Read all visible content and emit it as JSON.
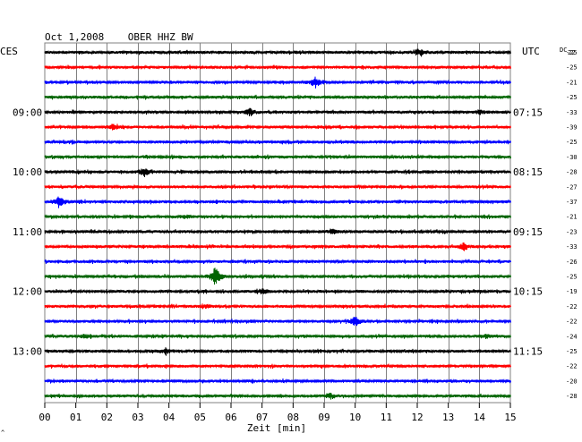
{
  "chart_data": {
    "type": "line",
    "title": "Oct 1,2008    OBER HHZ BW",
    "left_axis_label": "CES",
    "right_axis_label": "UTC",
    "dc_label": "DC",
    "dc_label_sub": "22",
    "xlabel": "Zeit [min]",
    "x_ticks": [
      "00",
      "01",
      "02",
      "03",
      "04",
      "05",
      "06",
      "07",
      "08",
      "09",
      "10",
      "11",
      "12",
      "13",
      "14",
      "15"
    ],
    "xlim": [
      0,
      15
    ],
    "grid": true,
    "left_hour_labels": [
      {
        "row": 4,
        "text": "09:00"
      },
      {
        "row": 8,
        "text": "10:00"
      },
      {
        "row": 12,
        "text": "11:00"
      },
      {
        "row": 16,
        "text": "12:00"
      },
      {
        "row": 20,
        "text": "13:00"
      }
    ],
    "right_time_labels": [
      {
        "row": 4,
        "text": "07:15"
      },
      {
        "row": 8,
        "text": "08:15"
      },
      {
        "row": 12,
        "text": "09:15"
      },
      {
        "row": 16,
        "text": "10:15"
      },
      {
        "row": 20,
        "text": "11:15"
      }
    ],
    "traces": [
      {
        "color": "#000000",
        "dc": "-25",
        "events": [
          {
            "t": 12.1,
            "amp": 4
          }
        ]
      },
      {
        "color": "#ff0000",
        "dc": "-25",
        "events": []
      },
      {
        "color": "#0000ff",
        "dc": "-21",
        "events": [
          {
            "t": 8.7,
            "amp": 6
          }
        ]
      },
      {
        "color": "#006400",
        "dc": "-25",
        "events": []
      },
      {
        "color": "#000000",
        "dc": "-33",
        "events": [
          {
            "t": 6.6,
            "amp": 4
          },
          {
            "t": 14.0,
            "amp": 2
          }
        ]
      },
      {
        "color": "#ff0000",
        "dc": "-39",
        "events": [
          {
            "t": 2.2,
            "amp": 3
          }
        ]
      },
      {
        "color": "#0000ff",
        "dc": "-25",
        "events": []
      },
      {
        "color": "#006400",
        "dc": "-30",
        "events": []
      },
      {
        "color": "#000000",
        "dc": "-28",
        "events": [
          {
            "t": 3.2,
            "amp": 5
          }
        ]
      },
      {
        "color": "#ff0000",
        "dc": "-27",
        "events": []
      },
      {
        "color": "#0000ff",
        "dc": "-37",
        "events": [
          {
            "t": 0.45,
            "amp": 7
          }
        ]
      },
      {
        "color": "#006400",
        "dc": "-21",
        "events": [
          {
            "t": 4.5,
            "amp": 2
          }
        ]
      },
      {
        "color": "#000000",
        "dc": "-23",
        "events": [
          {
            "t": 9.3,
            "amp": 2
          }
        ]
      },
      {
        "color": "#ff0000",
        "dc": "-33",
        "events": [
          {
            "t": 13.5,
            "amp": 4
          }
        ]
      },
      {
        "color": "#0000ff",
        "dc": "-26",
        "events": []
      },
      {
        "color": "#006400",
        "dc": "-25",
        "events": [
          {
            "t": 5.5,
            "amp": 10
          }
        ]
      },
      {
        "color": "#000000",
        "dc": "-19",
        "events": [
          {
            "t": 7.0,
            "amp": 3
          }
        ]
      },
      {
        "color": "#ff0000",
        "dc": "-22",
        "events": [
          {
            "t": 5.2,
            "amp": 2
          }
        ]
      },
      {
        "color": "#0000ff",
        "dc": "-22",
        "events": [
          {
            "t": 10.0,
            "amp": 5
          }
        ]
      },
      {
        "color": "#006400",
        "dc": "-24",
        "events": [
          {
            "t": 1.3,
            "amp": 2
          },
          {
            "t": 14.2,
            "amp": 2
          }
        ]
      },
      {
        "color": "#000000",
        "dc": "-25",
        "events": [
          {
            "t": 3.9,
            "amp": 3
          }
        ]
      },
      {
        "color": "#ff0000",
        "dc": "-22",
        "events": []
      },
      {
        "color": "#0000ff",
        "dc": "-20",
        "events": []
      },
      {
        "color": "#006400",
        "dc": "-28",
        "events": [
          {
            "t": 9.2,
            "amp": 3
          }
        ]
      }
    ]
  }
}
